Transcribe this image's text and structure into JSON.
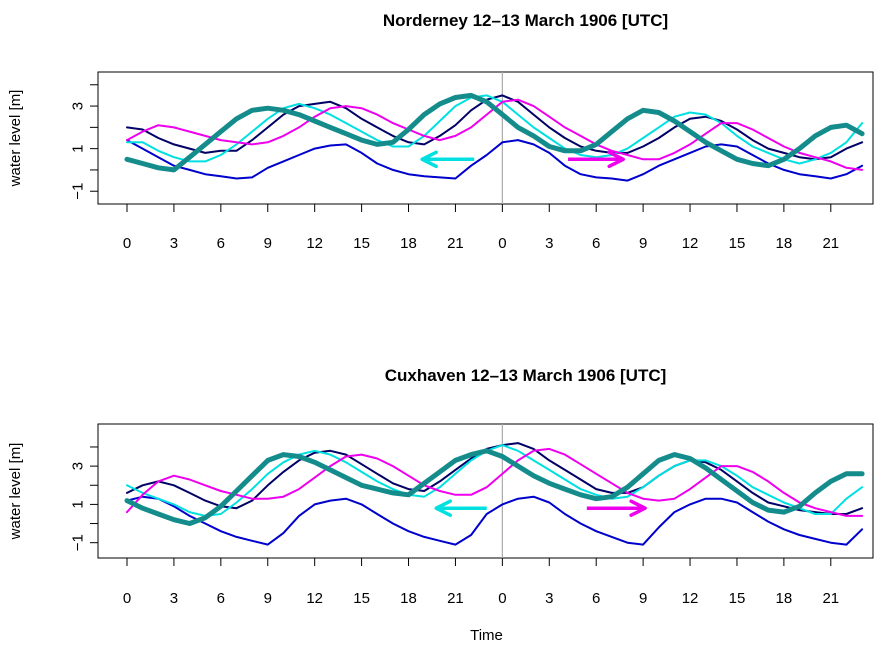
{
  "chart_data": [
    {
      "type": "line",
      "title": "Norderney 12–13 March 1906 [UTC]",
      "ylabel": "water level [m]",
      "xlabel": "",
      "x_hours": [
        0,
        1,
        2,
        3,
        4,
        5,
        6,
        7,
        8,
        9,
        10,
        11,
        12,
        13,
        14,
        15,
        16,
        17,
        18,
        19,
        20,
        21,
        22,
        23,
        24,
        25,
        26,
        27,
        28,
        29,
        30,
        31,
        32,
        33,
        34,
        35,
        36,
        37,
        38,
        39,
        40,
        41,
        42,
        43,
        44,
        45,
        46,
        47
      ],
      "x_tick_labels": [
        "0",
        "3",
        "6",
        "9",
        "12",
        "15",
        "18",
        "21",
        "0",
        "3",
        "6",
        "9",
        "12",
        "15",
        "18",
        "21"
      ],
      "y_ticks": [
        -1,
        1,
        3
      ],
      "ylim": [
        -1.6,
        4.6
      ],
      "xlim": [
        0,
        47
      ],
      "divider_hour": 24,
      "series": [
        {
          "color": "#0000cc",
          "width": 2,
          "values": [
            1.4,
            1.0,
            0.6,
            0.2,
            0.0,
            -0.2,
            -0.3,
            -0.4,
            -0.35,
            0.1,
            0.4,
            0.7,
            1.0,
            1.15,
            1.2,
            0.8,
            0.3,
            0.0,
            -0.2,
            -0.3,
            -0.35,
            -0.4,
            0.2,
            0.7,
            1.3,
            1.4,
            1.2,
            0.8,
            0.2,
            -0.2,
            -0.35,
            -0.4,
            -0.5,
            -0.2,
            0.2,
            0.5,
            0.8,
            1.1,
            1.2,
            1.1,
            0.7,
            0.3,
            0.0,
            -0.2,
            -0.3,
            -0.4,
            -0.2,
            0.2
          ]
        },
        {
          "color": "#000066",
          "width": 2,
          "values": [
            2.0,
            1.9,
            1.5,
            1.2,
            1.0,
            0.8,
            0.9,
            0.9,
            1.4,
            2.0,
            2.6,
            3.0,
            3.1,
            3.2,
            2.9,
            2.4,
            2.0,
            1.6,
            1.3,
            1.2,
            1.6,
            2.1,
            2.8,
            3.3,
            3.5,
            3.2,
            2.6,
            2.0,
            1.5,
            1.1,
            0.9,
            0.8,
            0.8,
            1.1,
            1.5,
            2.0,
            2.4,
            2.5,
            2.3,
            1.9,
            1.4,
            1.0,
            0.8,
            0.6,
            0.5,
            0.6,
            1.0,
            1.3
          ]
        },
        {
          "color": "#00e0e0",
          "width": 2,
          "values": [
            1.3,
            1.3,
            0.9,
            0.6,
            0.4,
            0.4,
            0.7,
            1.2,
            1.8,
            2.4,
            2.9,
            3.1,
            2.9,
            2.6,
            2.2,
            1.8,
            1.4,
            1.1,
            1.1,
            1.6,
            2.3,
            3.0,
            3.4,
            3.5,
            3.2,
            2.6,
            2.0,
            1.5,
            1.0,
            0.7,
            0.6,
            0.7,
            1.0,
            1.5,
            2.0,
            2.5,
            2.7,
            2.6,
            2.2,
            1.6,
            1.1,
            0.8,
            0.5,
            0.3,
            0.5,
            0.8,
            1.3,
            2.2
          ]
        },
        {
          "color": "#ee00ee",
          "width": 2,
          "values": [
            1.4,
            1.8,
            2.1,
            2.0,
            1.8,
            1.6,
            1.4,
            1.3,
            1.2,
            1.3,
            1.6,
            2.0,
            2.5,
            2.9,
            3.0,
            2.9,
            2.6,
            2.2,
            1.9,
            1.6,
            1.4,
            1.6,
            2.0,
            2.6,
            3.2,
            3.3,
            3.0,
            2.5,
            2.0,
            1.6,
            1.2,
            0.9,
            0.7,
            0.5,
            0.5,
            0.8,
            1.2,
            1.7,
            2.2,
            2.2,
            1.9,
            1.5,
            1.1,
            0.8,
            0.6,
            0.4,
            0.1,
            0.0
          ]
        },
        {
          "color": "#148c8c",
          "width": 5,
          "values": [
            0.5,
            0.3,
            0.1,
            0.0,
            0.6,
            1.2,
            1.8,
            2.4,
            2.8,
            2.9,
            2.8,
            2.6,
            2.3,
            2.0,
            1.7,
            1.4,
            1.2,
            1.3,
            1.9,
            2.6,
            3.1,
            3.4,
            3.5,
            3.2,
            2.6,
            2.0,
            1.6,
            1.1,
            0.9,
            0.9,
            1.2,
            1.8,
            2.4,
            2.8,
            2.7,
            2.3,
            1.8,
            1.3,
            0.9,
            0.5,
            0.3,
            0.2,
            0.5,
            1.0,
            1.6,
            2.0,
            2.1,
            1.7
          ]
        }
      ],
      "arrows": [
        {
          "color": "#00e0e0",
          "direction": "left",
          "hour_from": 22.2,
          "hour_to": 19.0,
          "level": 0.5
        },
        {
          "color": "#ee00ee",
          "direction": "right",
          "hour_from": 28.2,
          "hour_to": 31.6,
          "level": 0.5
        }
      ]
    },
    {
      "type": "line",
      "title": "Cuxhaven 12–13 March 1906 [UTC]",
      "ylabel": "water level [m]",
      "xlabel": "Time",
      "x_hours": [
        0,
        1,
        2,
        3,
        4,
        5,
        6,
        7,
        8,
        9,
        10,
        11,
        12,
        13,
        14,
        15,
        16,
        17,
        18,
        19,
        20,
        21,
        22,
        23,
        24,
        25,
        26,
        27,
        28,
        29,
        30,
        31,
        32,
        33,
        34,
        35,
        36,
        37,
        38,
        39,
        40,
        41,
        42,
        43,
        44,
        45,
        46,
        47
      ],
      "x_tick_labels": [
        "0",
        "3",
        "6",
        "9",
        "12",
        "15",
        "18",
        "21",
        "0",
        "3",
        "6",
        "9",
        "12",
        "15",
        "18",
        "21"
      ],
      "y_ticks": [
        -1,
        1,
        3
      ],
      "ylim": [
        -1.8,
        5.2
      ],
      "xlim": [
        0,
        47
      ],
      "divider_hour": 24,
      "series": [
        {
          "color": "#0000cc",
          "width": 2,
          "values": [
            1.2,
            1.4,
            1.3,
            0.9,
            0.4,
            0.0,
            -0.4,
            -0.7,
            -0.9,
            -1.1,
            -0.5,
            0.4,
            1.0,
            1.2,
            1.3,
            1.0,
            0.5,
            0.0,
            -0.4,
            -0.7,
            -0.9,
            -1.1,
            -0.6,
            0.5,
            1.0,
            1.3,
            1.4,
            1.1,
            0.5,
            0.0,
            -0.4,
            -0.7,
            -1.0,
            -1.1,
            -0.2,
            0.6,
            1.0,
            1.3,
            1.3,
            1.1,
            0.6,
            0.1,
            -0.3,
            -0.6,
            -0.8,
            -1.0,
            -1.1,
            -0.3
          ]
        },
        {
          "color": "#000066",
          "width": 2,
          "values": [
            1.6,
            2.0,
            2.2,
            2.0,
            1.6,
            1.2,
            0.9,
            0.8,
            1.2,
            2.0,
            2.7,
            3.3,
            3.7,
            3.8,
            3.6,
            3.1,
            2.6,
            2.1,
            1.8,
            1.7,
            2.2,
            2.8,
            3.4,
            3.9,
            4.1,
            4.2,
            3.9,
            3.3,
            2.8,
            2.3,
            1.8,
            1.6,
            1.6,
            1.9,
            2.5,
            3.0,
            3.3,
            3.2,
            2.8,
            2.2,
            1.6,
            1.1,
            0.9,
            0.7,
            0.6,
            0.5,
            0.5,
            0.8
          ]
        },
        {
          "color": "#00e0e0",
          "width": 2,
          "values": [
            2.0,
            1.6,
            1.3,
            1.0,
            0.6,
            0.4,
            0.5,
            1.1,
            1.8,
            2.6,
            3.2,
            3.6,
            3.8,
            3.6,
            3.2,
            2.7,
            2.2,
            1.8,
            1.5,
            1.4,
            1.9,
            2.6,
            3.3,
            3.8,
            4.1,
            3.8,
            3.3,
            2.8,
            2.3,
            1.8,
            1.5,
            1.3,
            1.4,
            1.9,
            2.5,
            3.0,
            3.3,
            3.3,
            3.0,
            2.5,
            1.9,
            1.5,
            1.1,
            0.8,
            0.5,
            0.5,
            1.3,
            1.9
          ]
        },
        {
          "color": "#ee00ee",
          "width": 2,
          "values": [
            0.6,
            1.5,
            2.2,
            2.5,
            2.3,
            2.0,
            1.7,
            1.5,
            1.3,
            1.3,
            1.4,
            1.8,
            2.4,
            3.0,
            3.5,
            3.6,
            3.4,
            3.0,
            2.5,
            2.0,
            1.7,
            1.5,
            1.5,
            1.9,
            2.6,
            3.3,
            3.8,
            3.9,
            3.6,
            3.1,
            2.6,
            2.1,
            1.6,
            1.3,
            1.2,
            1.3,
            1.8,
            2.4,
            3.0,
            3.0,
            2.7,
            2.2,
            1.6,
            1.1,
            0.8,
            0.6,
            0.4,
            0.4
          ]
        },
        {
          "color": "#148c8c",
          "width": 5,
          "values": [
            1.2,
            0.8,
            0.5,
            0.2,
            0.0,
            0.3,
            0.9,
            1.7,
            2.5,
            3.3,
            3.6,
            3.5,
            3.2,
            2.8,
            2.4,
            2.0,
            1.8,
            1.6,
            1.5,
            2.1,
            2.7,
            3.3,
            3.6,
            3.8,
            3.5,
            3.0,
            2.5,
            2.1,
            1.8,
            1.5,
            1.3,
            1.4,
            1.9,
            2.6,
            3.3,
            3.6,
            3.4,
            2.9,
            2.3,
            1.7,
            1.1,
            0.7,
            0.6,
            0.9,
            1.6,
            2.2,
            2.6,
            2.6
          ]
        }
      ],
      "arrows": [
        {
          "color": "#00e0e0",
          "direction": "left",
          "hour_from": 23.0,
          "hour_to": 19.9,
          "level": 0.8
        },
        {
          "color": "#ee00ee",
          "direction": "right",
          "hour_from": 29.4,
          "hour_to": 33.0,
          "level": 0.8
        }
      ]
    }
  ]
}
